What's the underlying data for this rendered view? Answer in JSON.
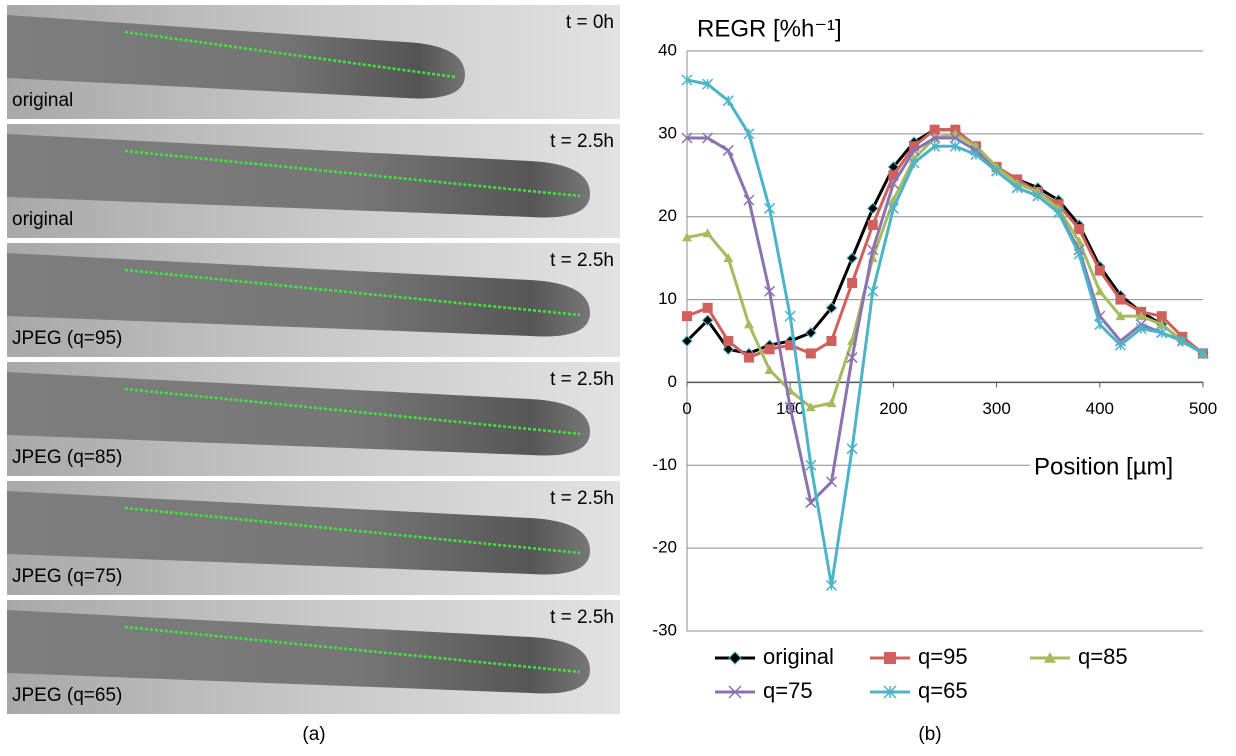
{
  "image_panels": [
    {
      "time": "t = 0h",
      "label": "original"
    },
    {
      "time": "t = 2.5h",
      "label": "original"
    },
    {
      "time": "t = 2.5h",
      "label": "JPEG (q=95)"
    },
    {
      "time": "t = 2.5h",
      "label": "JPEG (q=85)"
    },
    {
      "time": "t = 2.5h",
      "label": "JPEG (q=75)"
    },
    {
      "time": "t = 2.5h",
      "label": "JPEG (q=65)"
    }
  ],
  "captions": [
    "(a)",
    "(b)"
  ],
  "chart_data": {
    "type": "line",
    "y_label": "REGR [%h⁻¹]",
    "x_label": "Position [µm]",
    "x": [
      0,
      20,
      40,
      60,
      80,
      100,
      120,
      140,
      160,
      180,
      200,
      220,
      240,
      260,
      280,
      300,
      320,
      340,
      360,
      380,
      400,
      420,
      440,
      460,
      480,
      500
    ],
    "series": [
      {
        "name": "original",
        "color": "#000000",
        "marker": "diamond",
        "values": [
          5,
          7.5,
          4,
          3.5,
          4.5,
          5,
          6,
          9,
          15,
          21,
          26,
          29,
          30.5,
          30.5,
          28.5,
          26,
          24.5,
          23.5,
          22,
          19,
          14,
          10.5,
          8.5,
          7,
          5,
          3.5
        ]
      },
      {
        "name": "q=95",
        "color": "#d0605c",
        "marker": "square",
        "values": [
          8,
          9,
          5,
          3,
          4,
          4.5,
          3.5,
          5,
          12,
          19,
          25,
          28.5,
          30.5,
          30.5,
          28.5,
          26,
          24.5,
          23,
          21.5,
          18.5,
          13.5,
          10,
          8.5,
          8,
          5.5,
          3.5
        ]
      },
      {
        "name": "q=85",
        "color": "#a5bb5e",
        "marker": "triangle",
        "values": [
          17.5,
          18,
          15,
          7,
          1.5,
          -1,
          -3,
          -2.5,
          5,
          15,
          22,
          27,
          29.5,
          30,
          28.5,
          26,
          24,
          23,
          21,
          17,
          11,
          8,
          8,
          7,
          5,
          3.5
        ]
      },
      {
        "name": "q=75",
        "color": "#8b72b0",
        "marker": "x",
        "values": [
          29.5,
          29.5,
          28,
          22,
          11,
          -3,
          -14.5,
          -12,
          3,
          16,
          24,
          28,
          29.5,
          29.5,
          28,
          25.5,
          23.5,
          22.5,
          20.5,
          16,
          8,
          5,
          7,
          6,
          5,
          3.5
        ]
      },
      {
        "name": "q=65",
        "color": "#4bb4c9",
        "marker": "star",
        "values": [
          36.5,
          36,
          34,
          30,
          21,
          8,
          -10,
          -24.5,
          -8,
          11,
          21,
          26.5,
          28.5,
          28.5,
          27.5,
          25.5,
          23.5,
          22.5,
          20.5,
          15.5,
          7,
          4.5,
          6.5,
          6,
          5,
          3.5
        ]
      }
    ],
    "xlim": [
      0,
      500
    ],
    "xticks": [
      0,
      100,
      200,
      300,
      400,
      500
    ],
    "ylim": [
      -30,
      40
    ],
    "yticks": [
      -30,
      -20,
      -10,
      0,
      10,
      20,
      30,
      40
    ],
    "grid": true
  }
}
